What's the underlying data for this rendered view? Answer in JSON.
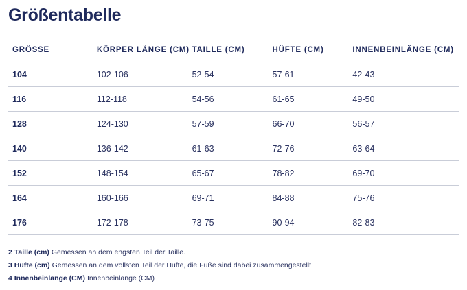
{
  "title": "Größentabelle",
  "table": {
    "headers": [
      "GRÖSSE",
      "KÖRPER LÄNGE (CM)",
      "TAILLE (CM)",
      "HÜFTE (CM)",
      "INNENBEINLÄNGE (CM)"
    ],
    "rows": [
      [
        "104",
        "102-106",
        "52-54",
        "57-61",
        "42-43"
      ],
      [
        "116",
        "112-118",
        "54-56",
        "61-65",
        "49-50"
      ],
      [
        "128",
        "124-130",
        "57-59",
        "66-70",
        "56-57"
      ],
      [
        "140",
        "136-142",
        "61-63",
        "72-76",
        "63-64"
      ],
      [
        "152",
        "148-154",
        "65-67",
        "78-82",
        "69-70"
      ],
      [
        "164",
        "160-166",
        "69-71",
        "84-88",
        "75-76"
      ],
      [
        "176",
        "172-178",
        "73-75",
        "90-94",
        "82-83"
      ]
    ]
  },
  "notes": [
    {
      "label": "2 Taille (cm)",
      "text": "Gemessen an dem engsten Teil der Taille."
    },
    {
      "label": "3 Hüfte (cm)",
      "text": "Gemessen an dem vollsten Teil der Hüfte, die Füße sind dabei zusammengestellt."
    },
    {
      "label": "4 Innenbeinlänge (CM)",
      "text": "Innenbeinlänge (CM)"
    }
  ]
}
